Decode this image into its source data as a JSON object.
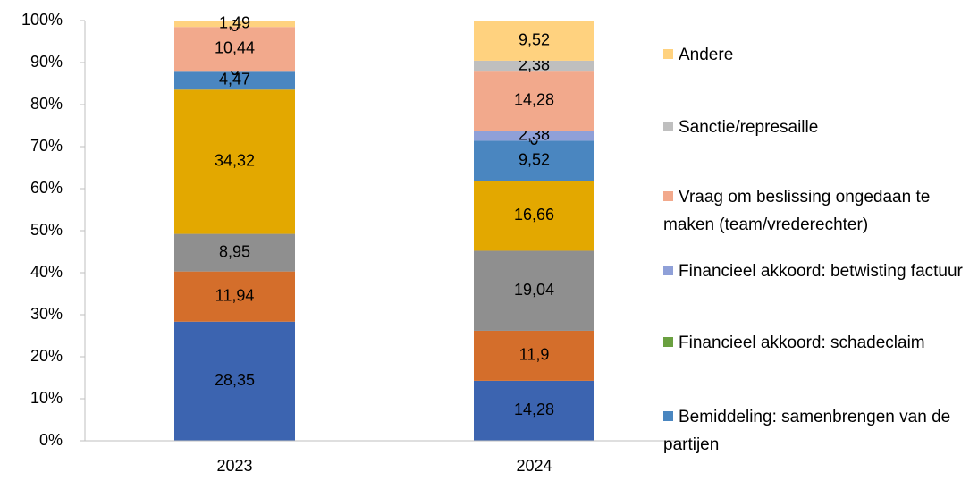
{
  "chart_data": {
    "type": "stacked_bar",
    "categories": [
      "2023",
      "2024"
    ],
    "series": [
      {
        "color": "#3c64b0",
        "values": [
          28.35,
          14.28
        ],
        "value_labels": [
          "28,35",
          "14,28"
        ]
      },
      {
        "color": "#d46e2b",
        "values": [
          11.94,
          11.9
        ],
        "value_labels": [
          "11,94",
          "11,9"
        ]
      },
      {
        "color": "#8f8f8f",
        "values": [
          8.95,
          19.04
        ],
        "value_labels": [
          "8,95",
          "19,04"
        ]
      },
      {
        "color": "#e3a800",
        "values": [
          34.32,
          16.66
        ],
        "value_labels": [
          "34,32",
          "16,66"
        ]
      },
      {
        "name": "Bemiddeling: samenbrengen van de partijen",
        "color": "#4a86c0",
        "values": [
          4.47,
          9.52
        ],
        "value_labels": [
          "4,47",
          "9,52"
        ]
      },
      {
        "name": "Financieel akkoord: schadeclaim",
        "color": "#6aa040",
        "values": [
          0,
          0
        ],
        "value_labels": [
          "0",
          "0"
        ]
      },
      {
        "name": "Financieel akkoord: betwisting factuur",
        "color": "#8fa0d8",
        "values": [
          0,
          2.38
        ],
        "value_labels": [
          "0",
          "2,38"
        ]
      },
      {
        "name": "Vraag om beslissing ongedaan te maken (team/vrederechter)",
        "color": "#f2a98c",
        "values": [
          10.44,
          14.28
        ],
        "value_labels": [
          "10,44",
          "14,28"
        ]
      },
      {
        "name": "Sanctie/represaille",
        "color": "#bfbfbf",
        "values": [
          0,
          2.38
        ],
        "value_labels": [
          "0",
          "2,38"
        ]
      },
      {
        "name": "Andere",
        "color": "#ffd27f",
        "values": [
          1.49,
          9.52
        ],
        "value_labels": [
          "1,49",
          "9,52"
        ]
      }
    ],
    "ylim": [
      0,
      100
    ],
    "yticks": [
      {
        "value": 0,
        "label": "0%"
      },
      {
        "value": 10,
        "label": "10%"
      },
      {
        "value": 20,
        "label": "20%"
      },
      {
        "value": 30,
        "label": "30%"
      },
      {
        "value": 40,
        "label": "40%"
      },
      {
        "value": 50,
        "label": "50%"
      },
      {
        "value": 60,
        "label": "60%"
      },
      {
        "value": 70,
        "label": "70%"
      },
      {
        "value": 80,
        "label": "80%"
      },
      {
        "value": 90,
        "label": "90%"
      },
      {
        "value": 100,
        "label": "100%"
      }
    ],
    "legend": "right"
  }
}
